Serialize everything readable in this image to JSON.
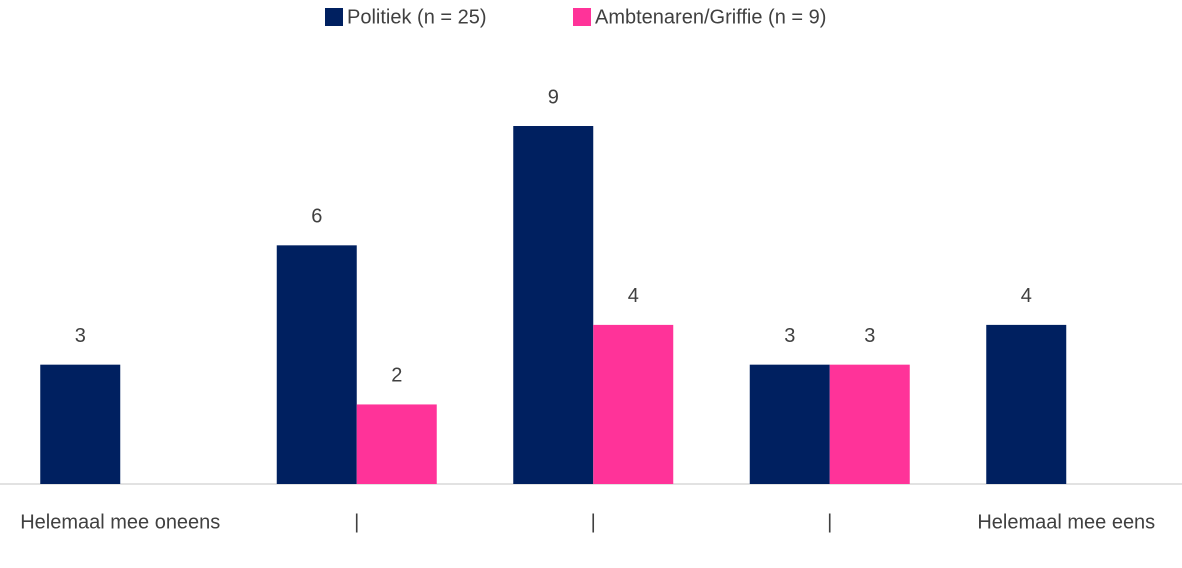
{
  "chart_data": {
    "type": "bar",
    "categories": [
      "Helemaal mee oneens",
      "|",
      "|",
      "|",
      "Helemaal mee eens"
    ],
    "series": [
      {
        "name": "Politiek (n = 25)",
        "color": "#002060",
        "values": [
          3,
          6,
          9,
          3,
          4
        ]
      },
      {
        "name": "Ambtenaren/Griffie (n = 9)",
        "color": "#ff3399",
        "values": [
          null,
          2,
          4,
          3,
          null
        ]
      }
    ],
    "legend": "top"
  }
}
